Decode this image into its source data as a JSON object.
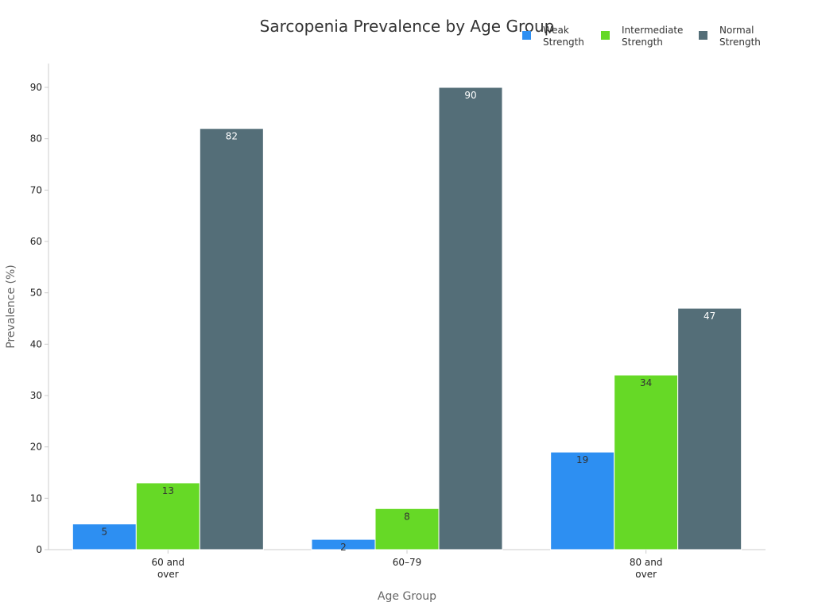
{
  "chart_data": {
    "type": "bar",
    "title": "Sarcopenia Prevalence by Age Group",
    "xlabel": "Age Group",
    "ylabel": "Prevalence (%)",
    "categories": [
      [
        "60 and",
        "over"
      ],
      [
        "60–79"
      ],
      [
        "80 and",
        "over"
      ]
    ],
    "series": [
      {
        "name": [
          "Weak",
          "Strength"
        ],
        "color": "#2d8ff2",
        "label_color": "#333333",
        "values": [
          5,
          2,
          19
        ]
      },
      {
        "name": [
          "Intermediate",
          "Strength"
        ],
        "color": "#66d926",
        "label_color": "#333333",
        "values": [
          13,
          8,
          34
        ]
      },
      {
        "name": [
          "Normal",
          "Strength"
        ],
        "color": "#546e78",
        "label_color": "#ffffff",
        "values": [
          82,
          90,
          47
        ]
      }
    ],
    "ylim": [
      0,
      95
    ],
    "yticks": [
      0,
      10,
      20,
      30,
      40,
      50,
      60,
      70,
      80,
      90
    ],
    "grid": false,
    "legend_position": "top-right"
  }
}
